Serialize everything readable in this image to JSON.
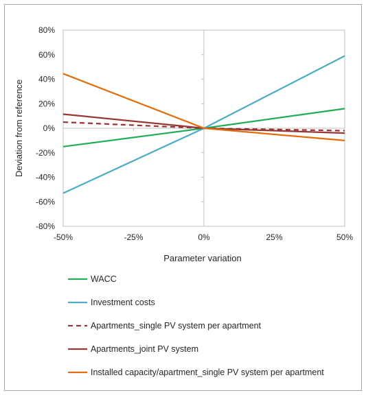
{
  "chart_data": {
    "type": "line",
    "title": "",
    "xlabel": "Parameter variation",
    "ylabel": "Deviation from reference",
    "x": [
      -50,
      0,
      50
    ],
    "xtick_labels": [
      "-50%",
      "-25%",
      "0%",
      "25%",
      "50%"
    ],
    "xtick_values": [
      -50,
      -25,
      0,
      25,
      50
    ],
    "xlim": [
      -50,
      50
    ],
    "ytick_labels": [
      "80%",
      "60%",
      "40%",
      "20%",
      "0%",
      "-20%",
      "-40%",
      "-60%",
      "-80%"
    ],
    "ytick_values": [
      80,
      60,
      40,
      20,
      0,
      -20,
      -40,
      -60,
      -80
    ],
    "ylim": [
      -80,
      80
    ],
    "grid": false,
    "legend_position": "bottom",
    "series": [
      {
        "name": "WACC",
        "values": [
          -15,
          0,
          16
        ],
        "color": "#1fae58",
        "dashed": false
      },
      {
        "name": "Investment costs",
        "values": [
          -53,
          0,
          59
        ],
        "color": "#4bacc6",
        "dashed": false
      },
      {
        "name": "Apartments_single PV system per apartment",
        "values": [
          5,
          0,
          -2
        ],
        "color": "#953735",
        "dashed": true
      },
      {
        "name": "Apartments_joint PV system",
        "values": [
          11.5,
          0,
          -4
        ],
        "color": "#953735",
        "dashed": false
      },
      {
        "name": "Installed capacity/apartment_single PV system per apartment",
        "values": [
          44.5,
          0,
          -10
        ],
        "color": "#e46c0a",
        "dashed": false
      }
    ]
  }
}
